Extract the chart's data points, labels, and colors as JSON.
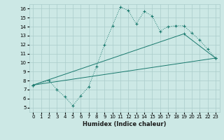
{
  "xlabel": "Humidex (Indice chaleur)",
  "bg_color": "#cce8e5",
  "line_color": "#1a7a6e",
  "grid_color": "#aaccca",
  "xlim": [
    -0.5,
    23.5
  ],
  "ylim": [
    4.5,
    16.5
  ],
  "xticks": [
    0,
    1,
    2,
    3,
    4,
    5,
    6,
    7,
    8,
    9,
    10,
    11,
    12,
    13,
    14,
    15,
    16,
    17,
    18,
    19,
    20,
    21,
    22,
    23
  ],
  "yticks": [
    5,
    6,
    7,
    8,
    9,
    10,
    11,
    12,
    13,
    14,
    15,
    16
  ],
  "line1_x": [
    0,
    2,
    3,
    4,
    5,
    6,
    7,
    8,
    9,
    10,
    11,
    12,
    13,
    14,
    15,
    16,
    17,
    18,
    19,
    20,
    21,
    22,
    23
  ],
  "line1_y": [
    7.5,
    8.0,
    7.0,
    6.2,
    5.2,
    6.3,
    7.3,
    9.6,
    12.0,
    14.1,
    16.2,
    15.8,
    14.3,
    15.7,
    15.2,
    13.5,
    14.0,
    14.1,
    14.1,
    13.3,
    12.5,
    11.5,
    10.5
  ],
  "line2_x": [
    0,
    23
  ],
  "line2_y": [
    7.5,
    10.5
  ],
  "line3_x": [
    0,
    19,
    23
  ],
  "line3_y": [
    7.5,
    13.2,
    10.5
  ]
}
